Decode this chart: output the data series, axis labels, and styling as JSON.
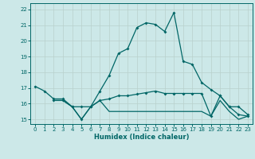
{
  "xlabel": "Humidex (Indice chaleur)",
  "bg_color": "#cce8e8",
  "grid_color": "#b8d0cc",
  "line_color": "#006666",
  "xlim": [
    -0.5,
    23.5
  ],
  "ylim": [
    14.7,
    22.4
  ],
  "xticks": [
    0,
    1,
    2,
    3,
    4,
    5,
    6,
    7,
    8,
    9,
    10,
    11,
    12,
    13,
    14,
    15,
    16,
    17,
    18,
    19,
    20,
    21,
    22,
    23
  ],
  "yticks": [
    15,
    16,
    17,
    18,
    19,
    20,
    21,
    22
  ],
  "line1_y": [
    17.1,
    16.8,
    16.3,
    16.3,
    15.8,
    15.0,
    15.8,
    16.8,
    17.8,
    19.2,
    19.5,
    20.85,
    21.15,
    21.05,
    20.6,
    21.8,
    18.7,
    18.5,
    17.35,
    16.9,
    16.5,
    15.8,
    15.8,
    15.3
  ],
  "line2_x": [
    2,
    3,
    4,
    5,
    6,
    7,
    8,
    9,
    10,
    11,
    12,
    13,
    14,
    15,
    16,
    17,
    18,
    19,
    20,
    21,
    22,
    23
  ],
  "line2_y": [
    16.2,
    16.2,
    15.8,
    15.8,
    15.8,
    16.2,
    16.3,
    16.5,
    16.5,
    16.6,
    16.7,
    16.8,
    16.65,
    16.65,
    16.65,
    16.65,
    16.65,
    15.2,
    16.5,
    15.8,
    15.3,
    15.2
  ],
  "line3_x": [
    2,
    3,
    4,
    5,
    6,
    7,
    8,
    9,
    10,
    11,
    12,
    13,
    14,
    15,
    16,
    17,
    18,
    19,
    20,
    21,
    22,
    23
  ],
  "line3_y": [
    16.2,
    16.2,
    15.8,
    15.0,
    15.8,
    16.2,
    15.5,
    15.5,
    15.5,
    15.5,
    15.5,
    15.5,
    15.5,
    15.5,
    15.5,
    15.5,
    15.5,
    15.2,
    16.2,
    15.5,
    15.0,
    15.2
  ]
}
